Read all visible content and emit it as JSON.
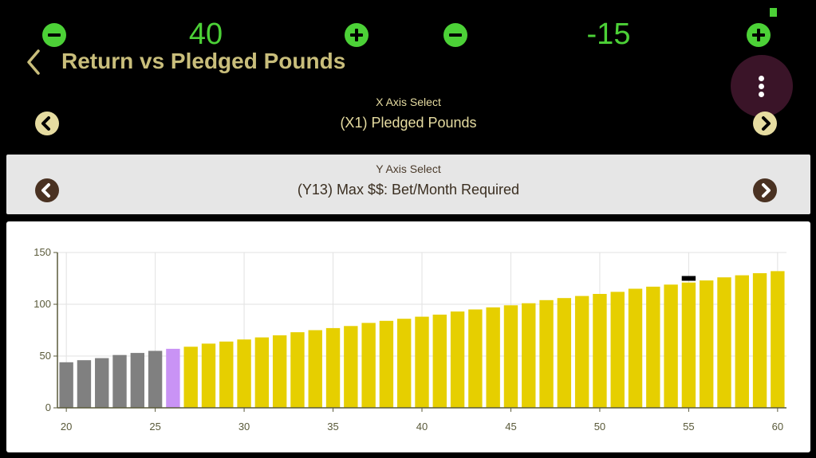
{
  "steppers": [
    {
      "value": "40"
    },
    {
      "value": "-15"
    }
  ],
  "header": {
    "title": "Return vs Pledged Pounds"
  },
  "x_axis_select": {
    "label": "X Axis Select",
    "value": "(X1) Pledged Pounds"
  },
  "y_axis_select": {
    "label": "Y Axis Select",
    "value": "(Y13) Max $$: Bet/Month Required"
  },
  "colors": {
    "accent_green": "#4cd137",
    "title_gold": "#c9be7b",
    "bar_gray": "#808080",
    "bar_highlight": "#c993f5",
    "bar_yellow": "#e6cf00",
    "marker_black": "#000000"
  },
  "icons": {
    "minus": "minus-circle-icon",
    "plus": "plus-circle-icon",
    "back": "chevron-left-icon",
    "menu": "more-vertical-icon",
    "prev": "chevron-left-circle-icon",
    "next": "chevron-right-circle-icon"
  },
  "chart_data": {
    "type": "bar",
    "x": [
      20,
      21,
      22,
      23,
      24,
      25,
      26,
      27,
      28,
      29,
      30,
      31,
      32,
      33,
      34,
      35,
      36,
      37,
      38,
      39,
      40,
      41,
      42,
      43,
      44,
      45,
      46,
      47,
      48,
      49,
      50,
      51,
      52,
      53,
      54,
      55,
      56,
      57,
      58,
      59,
      60
    ],
    "values": [
      44,
      46,
      48,
      51,
      53,
      55,
      57,
      59,
      62,
      64,
      66,
      68,
      70,
      73,
      75,
      77,
      79,
      82,
      84,
      86,
      88,
      90,
      93,
      95,
      97,
      99,
      101,
      104,
      106,
      108,
      110,
      112,
      115,
      117,
      119,
      121,
      123,
      126,
      128,
      130,
      132
    ],
    "bar_colors": [
      "gray",
      "gray",
      "gray",
      "gray",
      "gray",
      "gray",
      "highlight",
      "yellow",
      "yellow",
      "yellow",
      "yellow",
      "yellow",
      "yellow",
      "yellow",
      "yellow",
      "yellow",
      "yellow",
      "yellow",
      "yellow",
      "yellow",
      "yellow",
      "yellow",
      "yellow",
      "yellow",
      "yellow",
      "yellow",
      "yellow",
      "yellow",
      "yellow",
      "yellow",
      "yellow",
      "yellow",
      "yellow",
      "yellow",
      "yellow",
      "yellow",
      "yellow",
      "yellow",
      "yellow",
      "yellow",
      "yellow"
    ],
    "highlight_x": 26,
    "marker": {
      "x": 55,
      "y": 125
    },
    "x_ticks": [
      "20",
      "25",
      "30",
      "35",
      "40",
      "45",
      "50",
      "55",
      "60"
    ],
    "y_ticks": [
      "0",
      "50",
      "100",
      "150"
    ],
    "xlim": [
      19.5,
      60.5
    ],
    "ylim": [
      0,
      150
    ],
    "grid": true,
    "title": "",
    "xlabel": "",
    "ylabel": ""
  }
}
